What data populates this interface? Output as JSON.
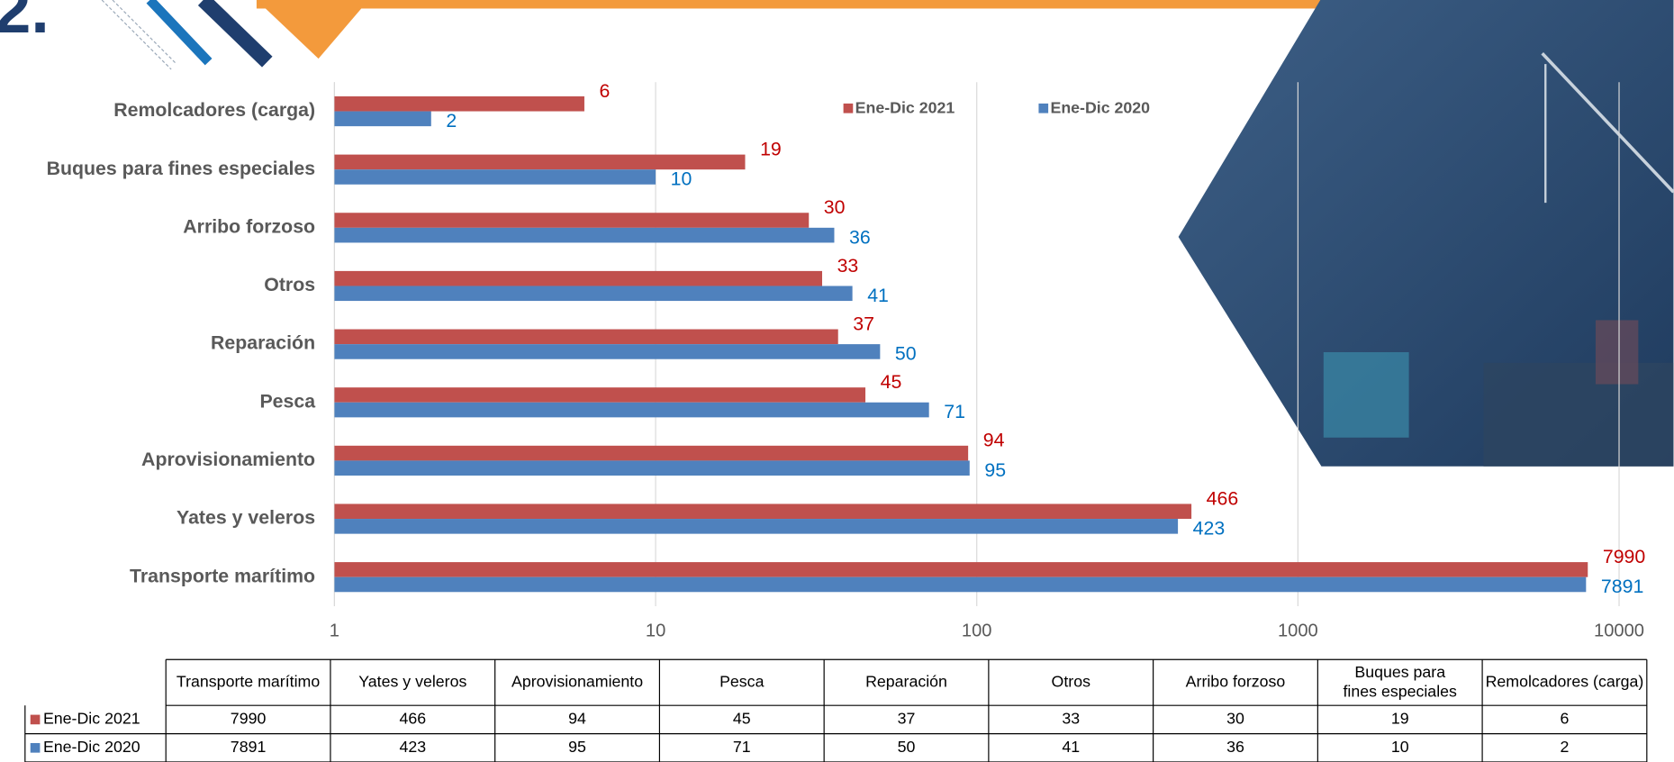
{
  "section_number": "2.",
  "chart_data": {
    "type": "bar",
    "orientation": "horizontal",
    "categories": [
      "Transporte marítimo",
      "Yates y veleros",
      "Aprovisionamiento",
      "Pesca",
      "Reparación",
      "Otros",
      "Arribo forzoso",
      "Buques para fines especiales",
      "Remolcadores (carga)"
    ],
    "series": [
      {
        "name": "Ene-Dic 2021",
        "color": "#c0504d",
        "label_color": "#c00000",
        "values": [
          7990,
          466,
          94,
          45,
          37,
          33,
          30,
          19,
          6
        ]
      },
      {
        "name": "Ene-Dic 2020",
        "color": "#4f81bd",
        "label_color": "#0070c0",
        "values": [
          7891,
          423,
          95,
          71,
          50,
          41,
          36,
          10,
          2
        ]
      }
    ],
    "xlim": [
      1,
      10000
    ],
    "xticks": [
      1,
      10,
      100,
      1000,
      10000
    ],
    "log_scale": true,
    "grid": true,
    "legend": "top",
    "data_table": true
  }
}
